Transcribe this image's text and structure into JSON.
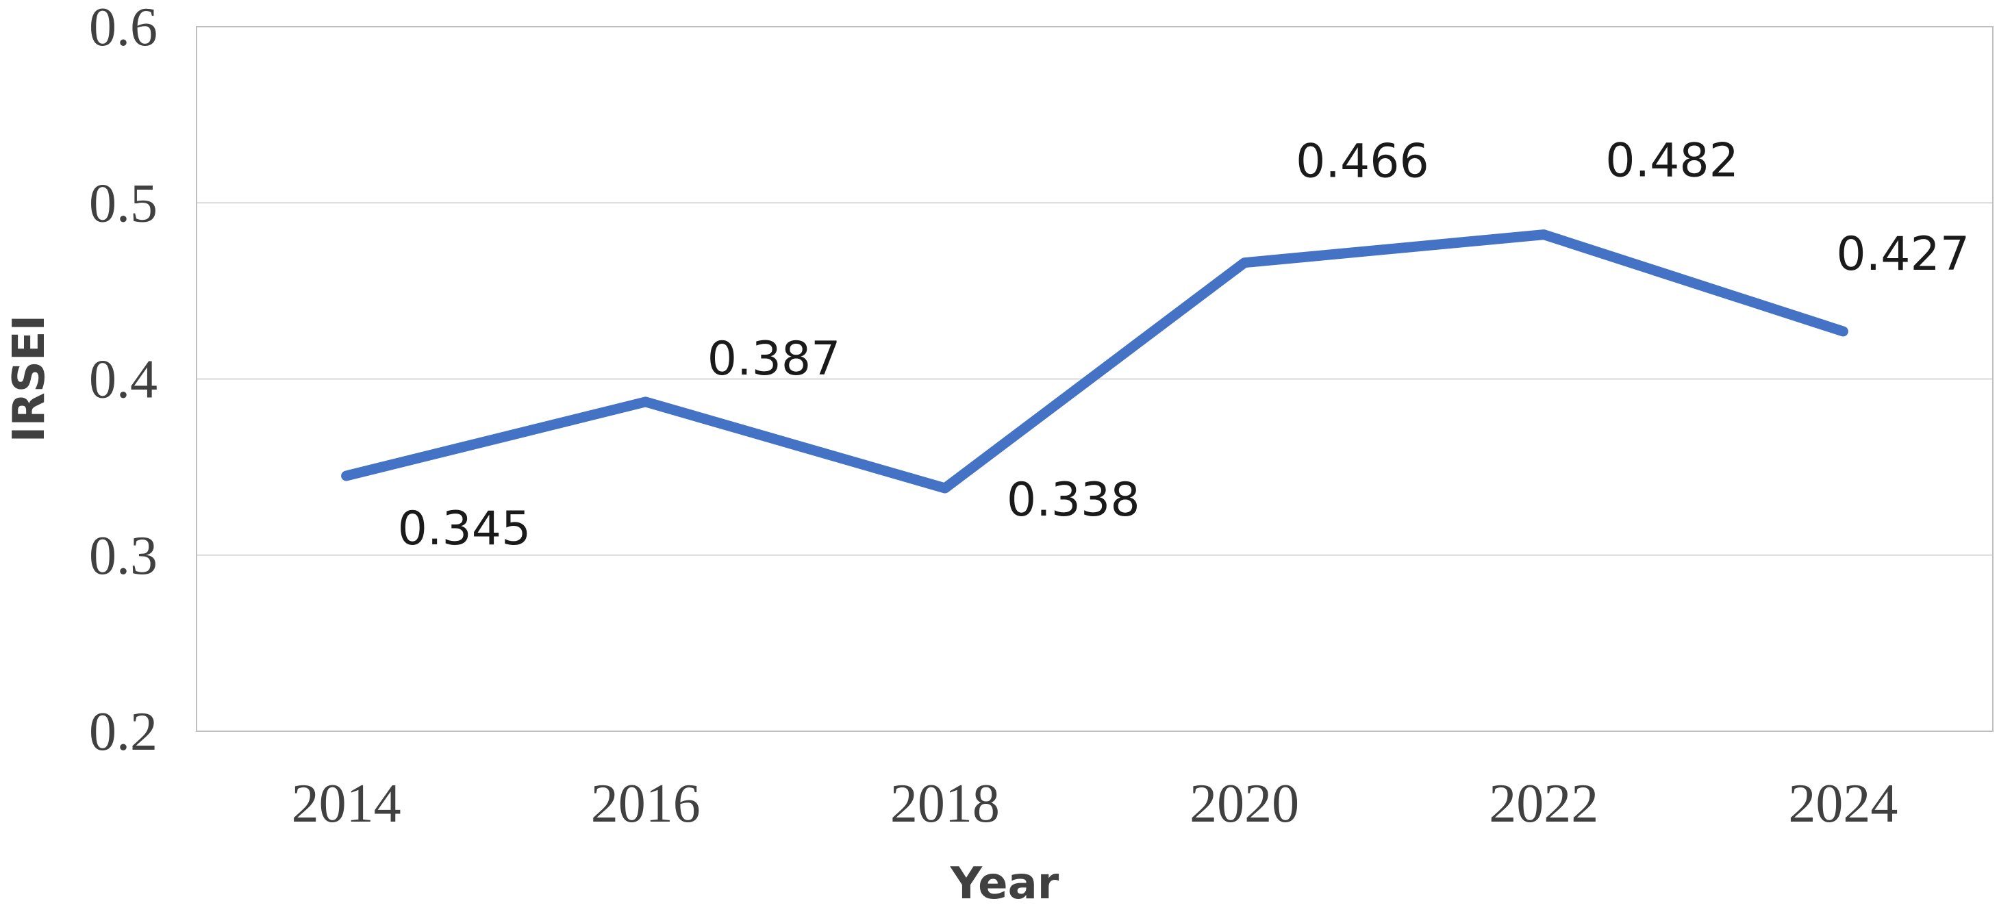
{
  "chart_data": {
    "type": "line",
    "categories": [
      "2014",
      "2016",
      "2018",
      "2020",
      "2022",
      "2024"
    ],
    "series": [
      {
        "values": [
          0.345,
          0.387,
          0.338,
          0.466,
          0.482,
          0.427
        ],
        "color": "#4472C4"
      }
    ],
    "data_labels": [
      "0.345",
      "0.387",
      "0.338",
      "0.466",
      "0.482",
      "0.427"
    ],
    "xlabel": "Year",
    "ylabel": "IRSEI",
    "ylim": [
      0.2,
      0.6
    ],
    "yticks": [
      "0.2",
      "0.3",
      "0.4",
      "0.5",
      "0.6"
    ],
    "grid": true,
    "legend": "none"
  }
}
